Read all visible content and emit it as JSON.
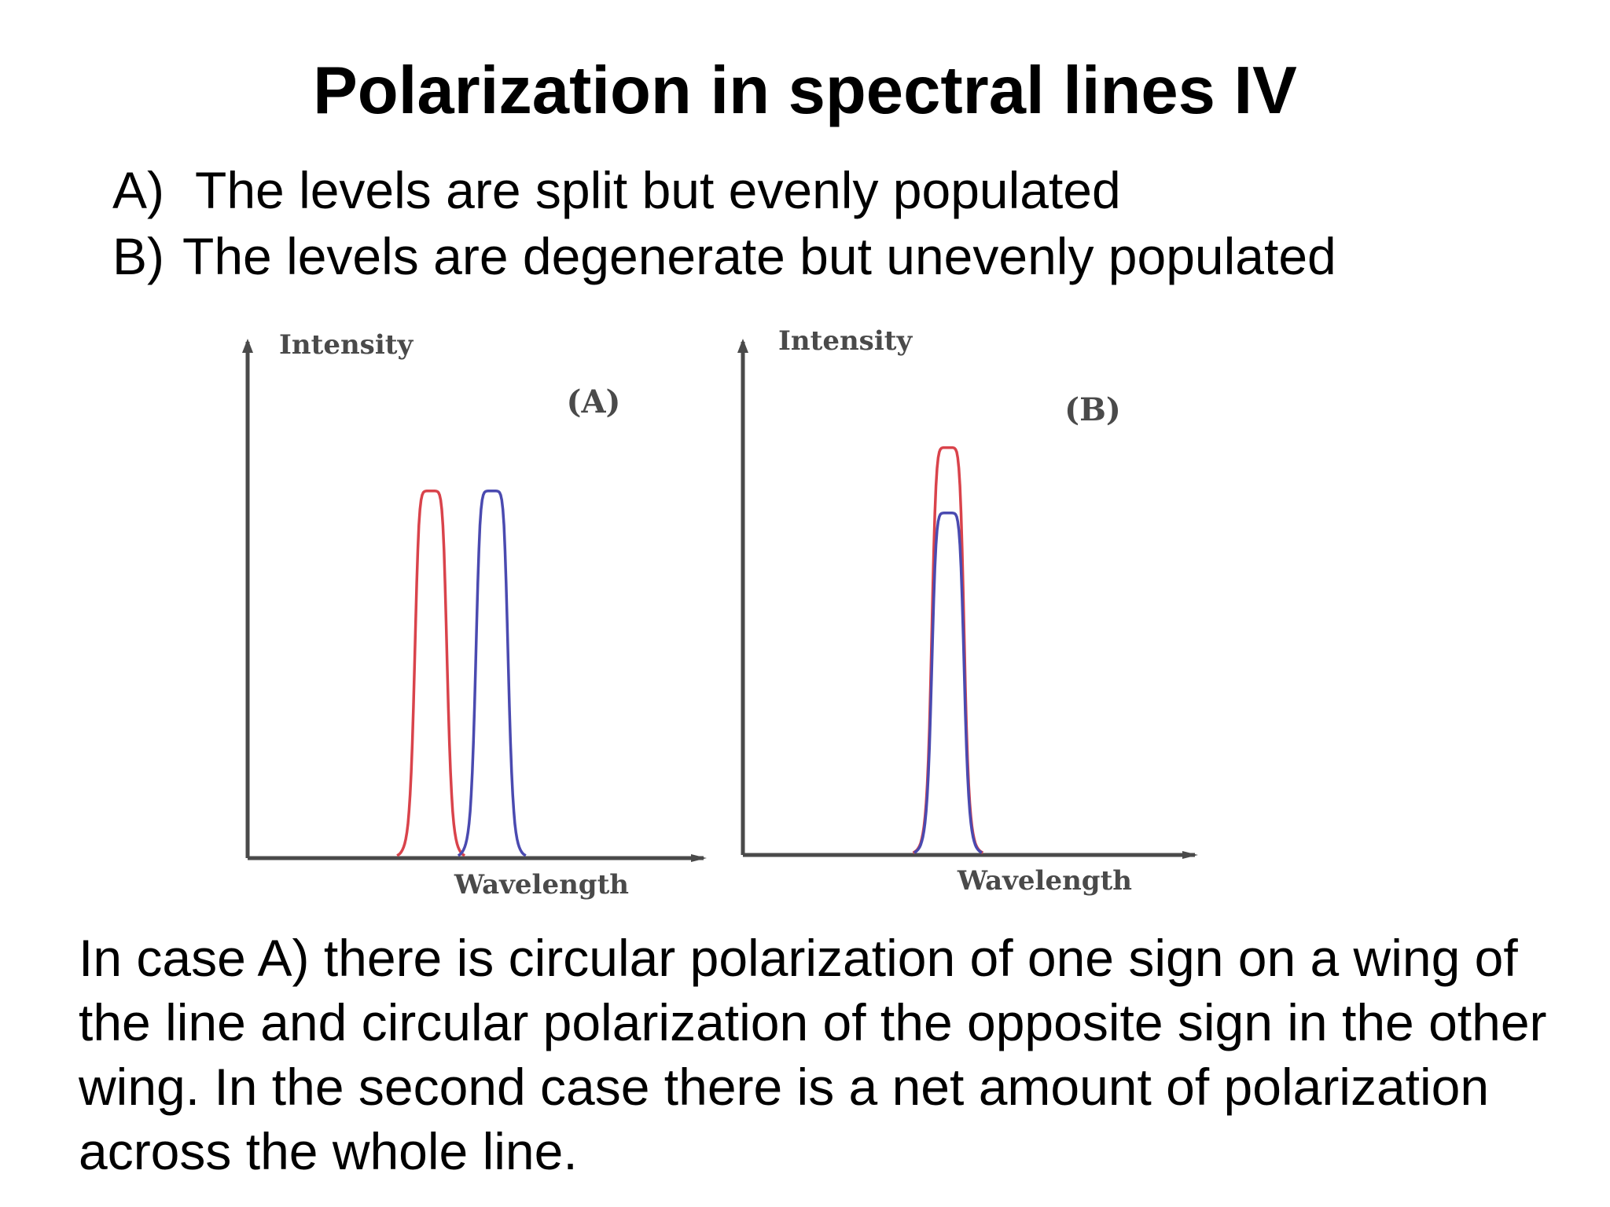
{
  "slide": {
    "title": "Polarization in spectral lines IV",
    "cases": [
      {
        "marker": "A)",
        "text": "The levels are split but evenly populated"
      },
      {
        "marker": "B)",
        "text": "The levels are degenerate but unevenly populated"
      }
    ],
    "conclusion": "In case A) there is circular polarization of one sign on a wing of the line and circular polarization of the opposite sign in the other wing. In the second case there is a net amount of polarization across the whole line."
  },
  "chart_data": [
    {
      "type": "line",
      "panel_label": "(A)",
      "xlabel": "Wavelength",
      "ylabel": "Intensity",
      "x_ticks": false,
      "y_ticks": false,
      "grid": false,
      "series": [
        {
          "color": "#d9434b",
          "center": 0.42,
          "peak": 0.73,
          "halfwidth": 0.038
        },
        {
          "color": "#4a4ab0",
          "center": 0.56,
          "peak": 0.73,
          "halfwidth": 0.038
        }
      ]
    },
    {
      "type": "line",
      "panel_label": "(B)",
      "xlabel": "Wavelength",
      "ylabel": "Intensity",
      "x_ticks": false,
      "y_ticks": false,
      "grid": false,
      "series": [
        {
          "color": "#d9434b",
          "center": 0.47,
          "peak": 0.81,
          "halfwidth": 0.038
        },
        {
          "color": "#4a4ab0",
          "center": 0.47,
          "peak": 0.68,
          "halfwidth": 0.038
        }
      ]
    }
  ]
}
